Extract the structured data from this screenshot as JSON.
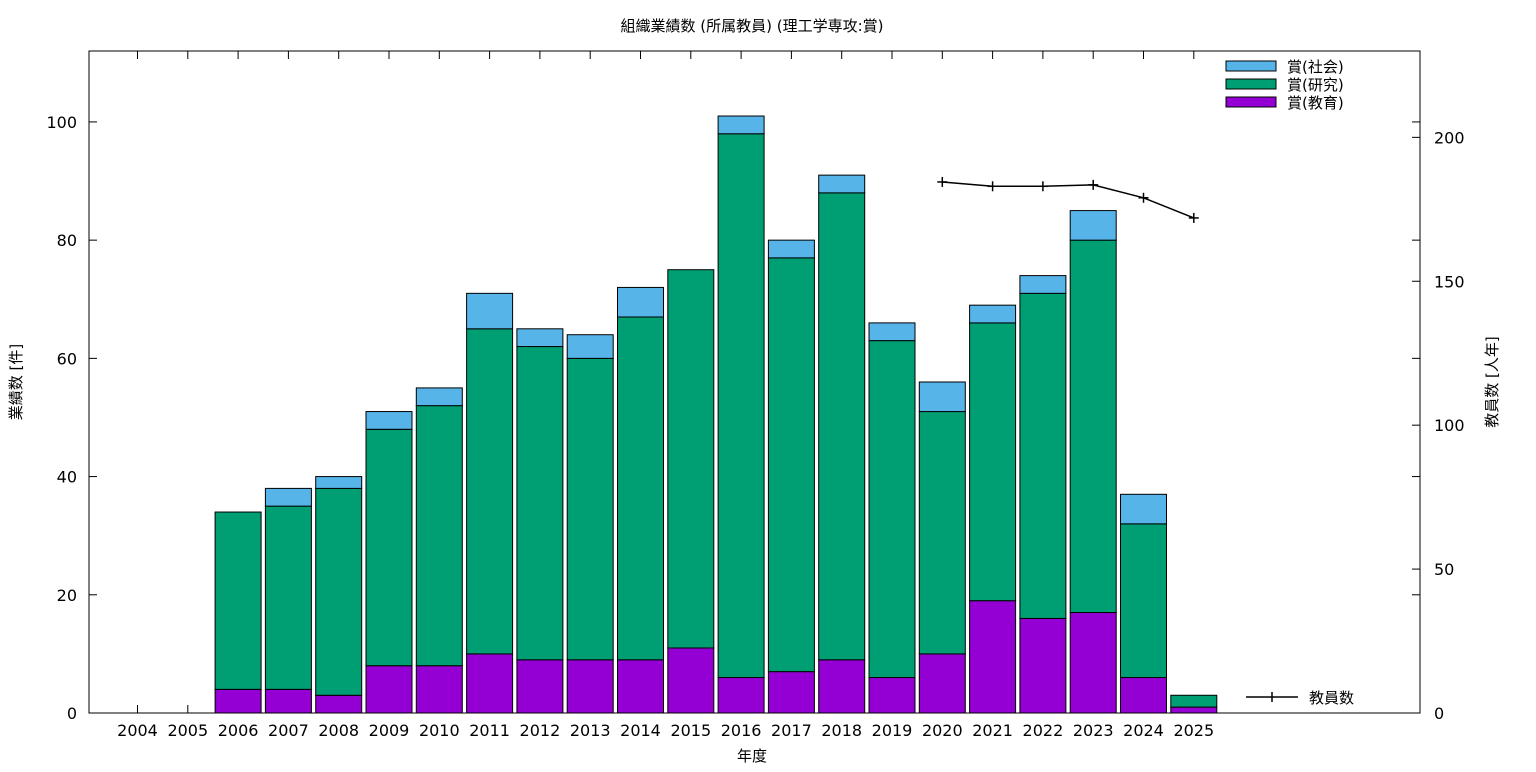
{
  "chart_data": {
    "type": "bar",
    "title": "組織業績数 (所属教員) (理工学専攻:賞)",
    "xlabel": "年度",
    "ylabel": "業績数 [件]",
    "y2label": "教員数 [人年]",
    "categories": [
      "2004",
      "2005",
      "2006",
      "2007",
      "2008",
      "2009",
      "2010",
      "2011",
      "2012",
      "2013",
      "2014",
      "2015",
      "2016",
      "2017",
      "2018",
      "2019",
      "2020",
      "2021",
      "2022",
      "2023",
      "2024",
      "2025"
    ],
    "ylim": [
      0,
      112
    ],
    "yticks": [
      0,
      20,
      40,
      60,
      80,
      100
    ],
    "y2lim": [
      0,
      230
    ],
    "y2ticks": [
      0,
      50,
      100,
      150,
      200
    ],
    "stacked": true,
    "grid": false,
    "legend_position": "top-right",
    "series": [
      {
        "name": "賞(教育)",
        "color": "#9400d3",
        "axis": "left",
        "values": [
          0,
          0,
          4,
          4,
          3,
          8,
          8,
          10,
          9,
          9,
          9,
          11,
          6,
          7,
          9,
          6,
          10,
          19,
          16,
          17,
          6,
          1
        ]
      },
      {
        "name": "賞(研究)",
        "color": "#009e73",
        "axis": "left",
        "values": [
          0,
          0,
          30,
          31,
          35,
          40,
          44,
          55,
          53,
          51,
          58,
          64,
          92,
          70,
          79,
          57,
          41,
          47,
          55,
          63,
          26,
          2
        ]
      },
      {
        "name": "賞(社会)",
        "color": "#56b4e9",
        "axis": "left",
        "values": [
          0,
          0,
          0,
          3,
          2,
          3,
          3,
          6,
          3,
          4,
          5,
          0,
          3,
          3,
          3,
          3,
          5,
          3,
          3,
          5,
          5,
          0
        ]
      }
    ],
    "line_series": {
      "name": "教員数",
      "color": "#000000",
      "axis": "right",
      "x": [
        "2020",
        "2021",
        "2022",
        "2023",
        "2024",
        "2025"
      ],
      "values": [
        184.5,
        183,
        183,
        183.5,
        179,
        172
      ]
    }
  }
}
